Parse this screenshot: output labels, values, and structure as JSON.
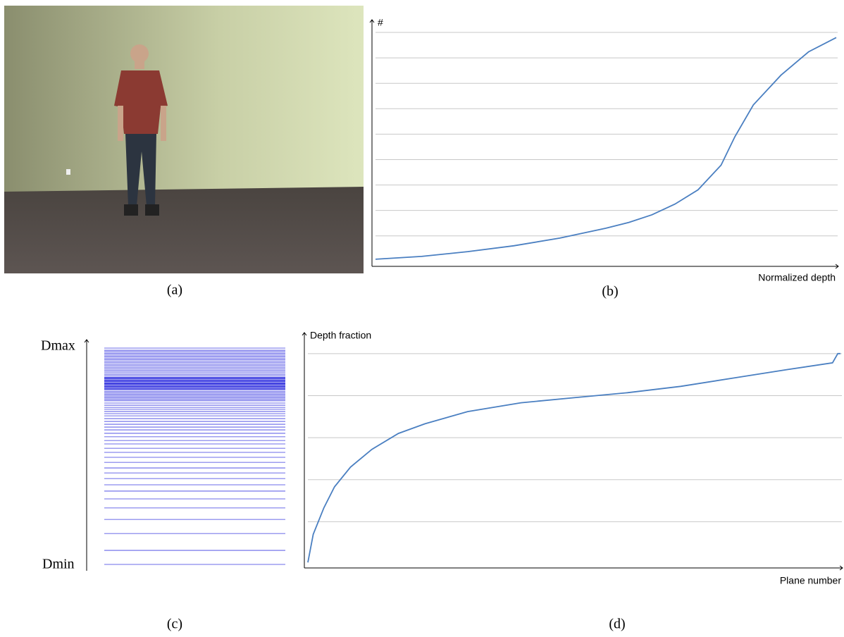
{
  "figure": {
    "a": {
      "caption": "(a)"
    },
    "c": {
      "caption": "(c)",
      "top_label": "Dmax",
      "bottom_label": "Dmin",
      "color": "#3a3ae0",
      "planes": [
        0,
        0.065,
        0.143,
        0.208,
        0.261,
        0.303,
        0.339,
        0.368,
        0.397,
        0.423,
        0.446,
        0.472,
        0.495,
        0.518,
        0.537,
        0.557,
        0.573,
        0.59,
        0.606,
        0.622,
        0.635,
        0.648,
        0.661,
        0.674,
        0.687,
        0.697,
        0.707,
        0.717,
        0.726,
        0.736,
        0.746,
        0.756,
        0.762,
        0.769,
        0.775,
        0.782,
        0.788,
        0.795,
        0.801,
        0.808,
        0.811,
        0.814,
        0.818,
        0.821,
        0.824,
        0.827,
        0.831,
        0.834,
        0.837,
        0.84,
        0.844,
        0.847,
        0.85,
        0.853,
        0.857,
        0.86,
        0.863,
        0.866,
        0.873,
        0.879,
        0.886,
        0.893,
        0.899,
        0.906,
        0.912,
        0.919,
        0.925,
        0.932,
        0.938,
        0.945,
        0.951,
        0.958,
        0.964,
        0.971,
        0.977,
        0.984,
        0.99,
        1
      ]
    }
  },
  "chart_data": [
    {
      "type": "line",
      "caption": "(b)",
      "ylabel": "#",
      "xlabel": "Normalized depth",
      "color": "#4a7fc1",
      "grid": true,
      "x": [
        0,
        0.1,
        0.2,
        0.3,
        0.4,
        0.5,
        0.55,
        0.6,
        0.65,
        0.7,
        0.75,
        0.78,
        0.82,
        0.88,
        0.94,
        1.0
      ],
      "values": [
        0.08,
        0.19,
        0.38,
        0.61,
        0.91,
        1.3,
        1.53,
        1.83,
        2.25,
        2.81,
        3.78,
        4.9,
        6.15,
        7.32,
        8.24,
        8.8
      ],
      "xlim": [
        0,
        1
      ],
      "ylim": [
        -0.2,
        9.5
      ],
      "yticks": [
        1,
        2,
        3,
        4,
        5,
        6,
        7,
        8,
        9
      ]
    },
    {
      "type": "line",
      "caption": "(d)",
      "ylabel": "Depth fraction",
      "xlabel": "Plane number",
      "color": "#4a7fc1",
      "grid": true,
      "x": [
        0,
        1,
        3,
        5,
        8,
        12,
        17,
        22,
        30,
        40,
        50,
        60,
        70,
        80,
        90,
        98.5,
        99.5,
        100
      ],
      "values": [
        0.03,
        0.7,
        1.33,
        1.83,
        2.3,
        2.72,
        3.1,
        3.33,
        3.62,
        3.83,
        3.95,
        4.07,
        4.22,
        4.42,
        4.62,
        4.78,
        5,
        5
      ],
      "xlim": [
        0,
        100
      ],
      "ylim": [
        -0.1,
        5.5
      ],
      "yticks": [
        1,
        2,
        3,
        4,
        5
      ]
    }
  ]
}
